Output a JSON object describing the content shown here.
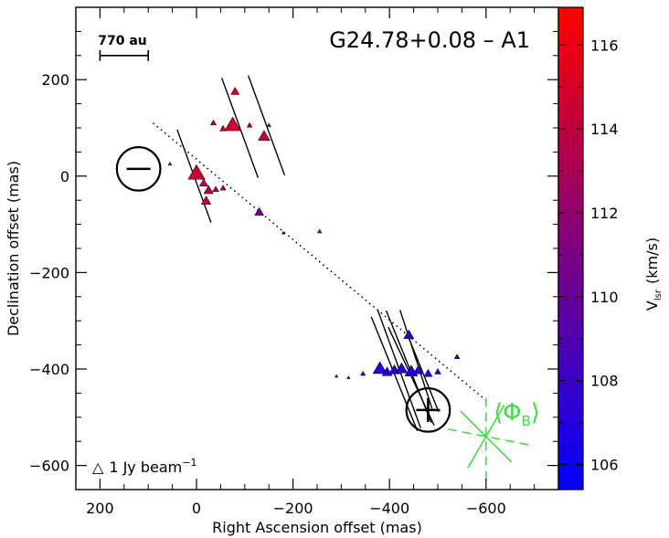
{
  "chart_data": {
    "type": "scatter",
    "title": "G24.78+0.08 – A1",
    "xlabel": "Right Ascension offset (mas)",
    "ylabel": "Declination offset (mas)",
    "xlim": [
      250,
      -750
    ],
    "ylim": [
      -650,
      350
    ],
    "xticks": [
      200,
      0,
      -200,
      -400,
      -600
    ],
    "xtick_labels": [
      "200",
      "0",
      "−200",
      "−400",
      "−600"
    ],
    "yticks": [
      200,
      0,
      -200,
      -400,
      -600
    ],
    "ytick_labels": [
      "200",
      "0",
      "−200",
      "−400",
      "−600"
    ],
    "colorbar": {
      "label": "V",
      "label_sub": "lsr",
      "label_unit": "(km/s)",
      "range": [
        105.4,
        116.9
      ],
      "ticks": [
        116,
        114,
        112,
        110,
        108,
        106
      ],
      "low_color": "#0000ff",
      "high_color": "#ff0000"
    },
    "scale_bar": {
      "label": "770 au",
      "x_from": 200,
      "x_to": 100,
      "y": 250
    },
    "intensity_legend": {
      "symbol": "△",
      "label": "1 Jy beam",
      "sup": "−1"
    },
    "pa_label": {
      "open": "⟨",
      "symbol": "Φ",
      "sub": "B",
      "close": "⟩"
    },
    "polarity": [
      {
        "sign": "−",
        "x": 120,
        "y": 15,
        "r": 45
      },
      {
        "sign": "+",
        "x": -480,
        "y": -485,
        "r": 45
      }
    ],
    "axis_line": {
      "from": [
        90,
        110
      ],
      "to": [
        -600,
        -465
      ]
    },
    "points": [
      {
        "x": 0,
        "y": 5,
        "v": 114.6,
        "s": 1.6
      },
      {
        "x": -15,
        "y": -15,
        "v": 114.2,
        "s": 0.8
      },
      {
        "x": -25,
        "y": -30,
        "v": 114.0,
        "s": 0.9
      },
      {
        "x": -40,
        "y": -28,
        "v": 113.8,
        "s": 0.6
      },
      {
        "x": -20,
        "y": -52,
        "v": 114.3,
        "s": 0.9
      },
      {
        "x": -55,
        "y": -25,
        "v": 113.4,
        "s": 0.55
      },
      {
        "x": 55,
        "y": 25,
        "v": 114.3,
        "s": 0.35
      },
      {
        "x": -75,
        "y": 105,
        "v": 114.8,
        "s": 1.5
      },
      {
        "x": -80,
        "y": 175,
        "v": 115.2,
        "s": 0.8
      },
      {
        "x": -35,
        "y": 110,
        "v": 114.4,
        "s": 0.55
      },
      {
        "x": -55,
        "y": 98,
        "v": 114.1,
        "s": 0.6
      },
      {
        "x": -110,
        "y": 105,
        "v": 113.2,
        "s": 0.5
      },
      {
        "x": -140,
        "y": 82,
        "v": 114.0,
        "s": 1.1
      },
      {
        "x": -150,
        "y": 105,
        "v": 113.6,
        "s": 0.4
      },
      {
        "x": -130,
        "y": -75,
        "v": 110.6,
        "s": 0.85
      },
      {
        "x": -180,
        "y": -118,
        "v": 109.5,
        "s": 0.3
      },
      {
        "x": -255,
        "y": -115,
        "v": 114.0,
        "s": 0.4
      },
      {
        "x": -440,
        "y": -330,
        "v": 107.5,
        "s": 0.95
      },
      {
        "x": -290,
        "y": -415,
        "v": 107.8,
        "s": 0.3
      },
      {
        "x": -315,
        "y": -418,
        "v": 108.0,
        "s": 0.3
      },
      {
        "x": -345,
        "y": -410,
        "v": 107.4,
        "s": 0.45
      },
      {
        "x": -380,
        "y": -400,
        "v": 107.0,
        "s": 1.3
      },
      {
        "x": -395,
        "y": -407,
        "v": 106.8,
        "s": 0.95
      },
      {
        "x": -410,
        "y": -403,
        "v": 107.2,
        "s": 1.0
      },
      {
        "x": -425,
        "y": -400,
        "v": 107.1,
        "s": 1.1
      },
      {
        "x": -445,
        "y": -406,
        "v": 106.9,
        "s": 1.2
      },
      {
        "x": -460,
        "y": -403,
        "v": 107.3,
        "s": 0.95
      },
      {
        "x": -480,
        "y": -410,
        "v": 107.0,
        "s": 0.8
      },
      {
        "x": -500,
        "y": -406,
        "v": 107.4,
        "s": 0.6
      },
      {
        "x": -540,
        "y": -375,
        "v": 107.6,
        "s": 0.5
      }
    ],
    "vectors": [
      {
        "x": -90,
        "y": 100,
        "len": 220,
        "pa": 20
      },
      {
        "x": -145,
        "y": 105,
        "len": 220,
        "pa": 20
      },
      {
        "x": 5,
        "y": 0,
        "len": 205,
        "pa": 20
      },
      {
        "x": -410,
        "y": -410,
        "len": 255,
        "pa": 22
      },
      {
        "x": -420,
        "y": -400,
        "len": 260,
        "pa": 20
      },
      {
        "x": -440,
        "y": -395,
        "len": 250,
        "pa": 22
      },
      {
        "x": -455,
        "y": -380,
        "len": 215,
        "pa": 18
      },
      {
        "x": -445,
        "y": -415,
        "len": 225,
        "pa": 25
      },
      {
        "x": -470,
        "y": -410,
        "len": 170,
        "pa": 22
      }
    ],
    "pa_cross": {
      "center": [
        -600,
        -540
      ],
      "dashed": [
        {
          "len": 180,
          "pa": 0
        },
        {
          "len": 180,
          "pa": 79
        }
      ],
      "solid": [
        {
          "len": 150,
          "pa": 45
        },
        {
          "len": 150,
          "pa": 150
        }
      ]
    }
  }
}
